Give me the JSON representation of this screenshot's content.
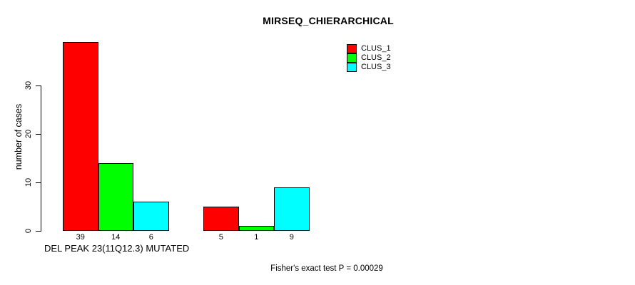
{
  "chart_data": {
    "type": "bar",
    "title": "MIRSEQ_CHIERARCHICAL",
    "ylabel": "number of cases",
    "xlabel": "DEL PEAK 23(11Q12.3) MUTATED",
    "footer": "Fisher's exact test P = 0.00029",
    "ylim": [
      0,
      30
    ],
    "yticks": [
      0,
      10,
      20,
      30
    ],
    "grid": false,
    "legend_position": "top-right",
    "group_count": 2,
    "bar_value_labels_shown": true,
    "series": [
      {
        "name": "CLUS_1",
        "color": "#ff0000",
        "values": [
          39,
          5
        ]
      },
      {
        "name": "CLUS_2",
        "color": "#00ff00",
        "values": [
          14,
          1
        ]
      },
      {
        "name": "CLUS_3",
        "color": "#00ffff",
        "values": [
          6,
          9
        ]
      }
    ]
  }
}
